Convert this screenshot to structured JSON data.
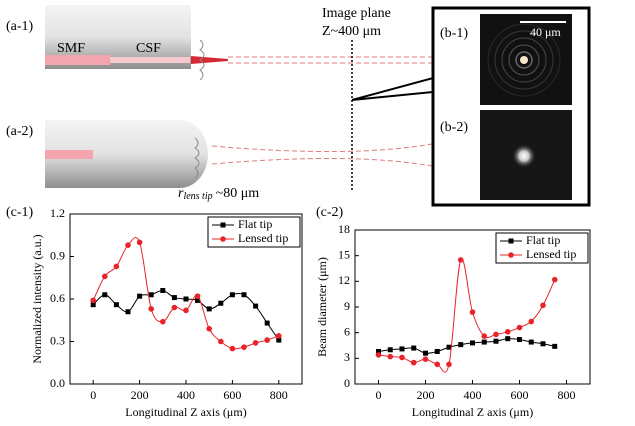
{
  "diagram": {
    "a1_label": "(a-1)",
    "smf": "SMF",
    "csf": "CSF",
    "image_plane": "Image plane",
    "z_pos": "Z~400 μm",
    "a2_label": "(a-2)",
    "r_symbol": "r",
    "r_subscript": "lens tip",
    "r_value": "~80 μm",
    "b1_label": "(b-1)",
    "scale_bar": "40 μm",
    "b2_label": "(b-2)",
    "c1_label": "(c-1)",
    "c2_label": "(c-2)"
  },
  "chart_data": [
    {
      "type": "line",
      "xlabel": "Longitudinal Z axis (μm)",
      "ylabel": "Normalized intensity (a.u.)",
      "x": [
        0,
        50,
        100,
        150,
        200,
        250,
        300,
        350,
        400,
        450,
        500,
        550,
        600,
        650,
        700,
        750,
        800
      ],
      "series": [
        {
          "name": "Flat tip",
          "color": "#000000",
          "marker": "square",
          "values": [
            0.56,
            0.63,
            0.56,
            0.51,
            0.62,
            0.63,
            0.66,
            0.61,
            0.6,
            0.59,
            0.53,
            0.57,
            0.63,
            0.63,
            0.55,
            0.43,
            0.31
          ]
        },
        {
          "name": "Lensed tip",
          "color": "#e8242a",
          "marker": "circle",
          "values": [
            0.59,
            0.76,
            0.83,
            0.98,
            1.0,
            0.53,
            0.44,
            0.54,
            0.52,
            0.62,
            0.39,
            0.3,
            0.25,
            0.26,
            0.29,
            0.31,
            0.34
          ]
        }
      ],
      "xlim": [
        -100,
        900
      ],
      "xticks": [
        0,
        200,
        400,
        600,
        800
      ],
      "ylim": [
        0,
        1.2
      ],
      "yticks": [
        {
          "value": 0,
          "label": "0.0"
        },
        0.3,
        0.6,
        0.9,
        1.2
      ],
      "legend": "upper right"
    },
    {
      "type": "line",
      "xlabel": "Longitudinal Z axis (μm)",
      "ylabel": "Beam diameter (μm)",
      "x": [
        0,
        50,
        100,
        150,
        200,
        250,
        300,
        350,
        400,
        450,
        500,
        550,
        600,
        650,
        700,
        750
      ],
      "series": [
        {
          "name": "Flat tip",
          "color": "#000000",
          "marker": "square",
          "values": [
            3.8,
            4.0,
            4.1,
            4.2,
            3.6,
            3.8,
            4.3,
            4.6,
            4.8,
            4.9,
            5.0,
            5.3,
            5.2,
            4.9,
            4.7,
            4.4
          ]
        },
        {
          "name": "Lensed tip",
          "color": "#e8242a",
          "marker": "circle",
          "values": [
            3.4,
            3.2,
            3.1,
            2.5,
            2.9,
            2.3,
            2.3,
            14.5,
            8.4,
            5.6,
            5.8,
            6.1,
            6.6,
            7.3,
            9.2,
            12.2
          ]
        }
      ],
      "xlim": [
        -100,
        900
      ],
      "xticks": [
        0,
        200,
        400,
        600,
        800
      ],
      "ylim": [
        0,
        18
      ],
      "yticks": [
        0,
        3,
        6,
        9,
        12,
        15,
        18
      ],
      "legend": "upper right"
    }
  ]
}
